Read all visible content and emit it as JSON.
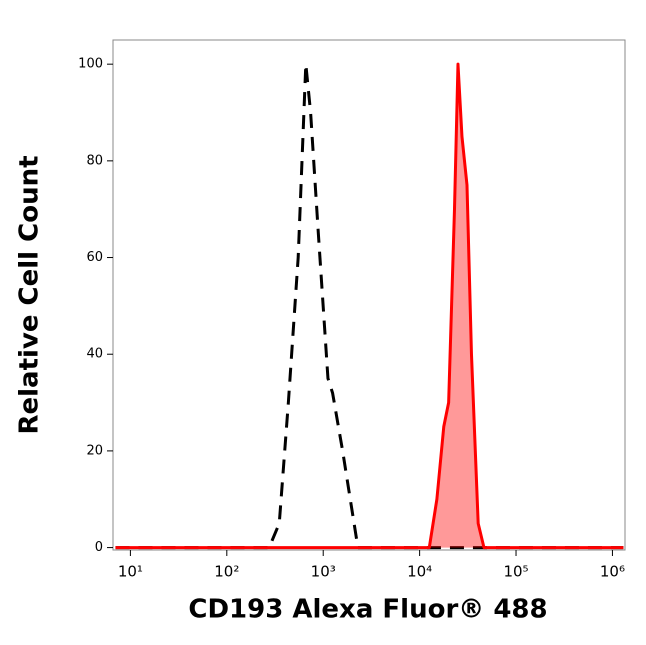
{
  "chart_data": {
    "type": "histogram",
    "xlabel": "CD193 Alexa Fluor® 488",
    "ylabel": "Relative Cell Count",
    "xscale": "log",
    "xlim": [
      6.6,
      1350000
    ],
    "ylim": [
      -0.5,
      105
    ],
    "xticks": [
      {
        "value": 10,
        "label": "10¹"
      },
      {
        "value": 100,
        "label": "10²"
      },
      {
        "value": 1000,
        "label": "10³"
      },
      {
        "value": 10000,
        "label": "10⁴"
      },
      {
        "value": 100000,
        "label": "10⁵"
      },
      {
        "value": 1000000,
        "label": "10⁶"
      }
    ],
    "yticks": [
      0,
      20,
      40,
      60,
      80,
      100
    ],
    "series": [
      {
        "color": "#000000",
        "style": "dashed",
        "filled": false,
        "x": [
          7,
          275,
          350,
          435,
          550,
          660,
          740,
          890,
          1120,
          1250,
          1590,
          2290,
          1300000
        ],
        "values": [
          0,
          0,
          5,
          30,
          60,
          100,
          90,
          65,
          35,
          32,
          20,
          0,
          0
        ]
      },
      {
        "color": "#ff0000",
        "style": "solid",
        "filled": true,
        "x": [
          7,
          12600,
          15100,
          17800,
          20000,
          23000,
          25000,
          27500,
          31000,
          34500,
          40500,
          46500,
          1300000
        ],
        "values": [
          0,
          0,
          10,
          25,
          30,
          70,
          100,
          85,
          75,
          40,
          5,
          0,
          0
        ]
      }
    ]
  }
}
